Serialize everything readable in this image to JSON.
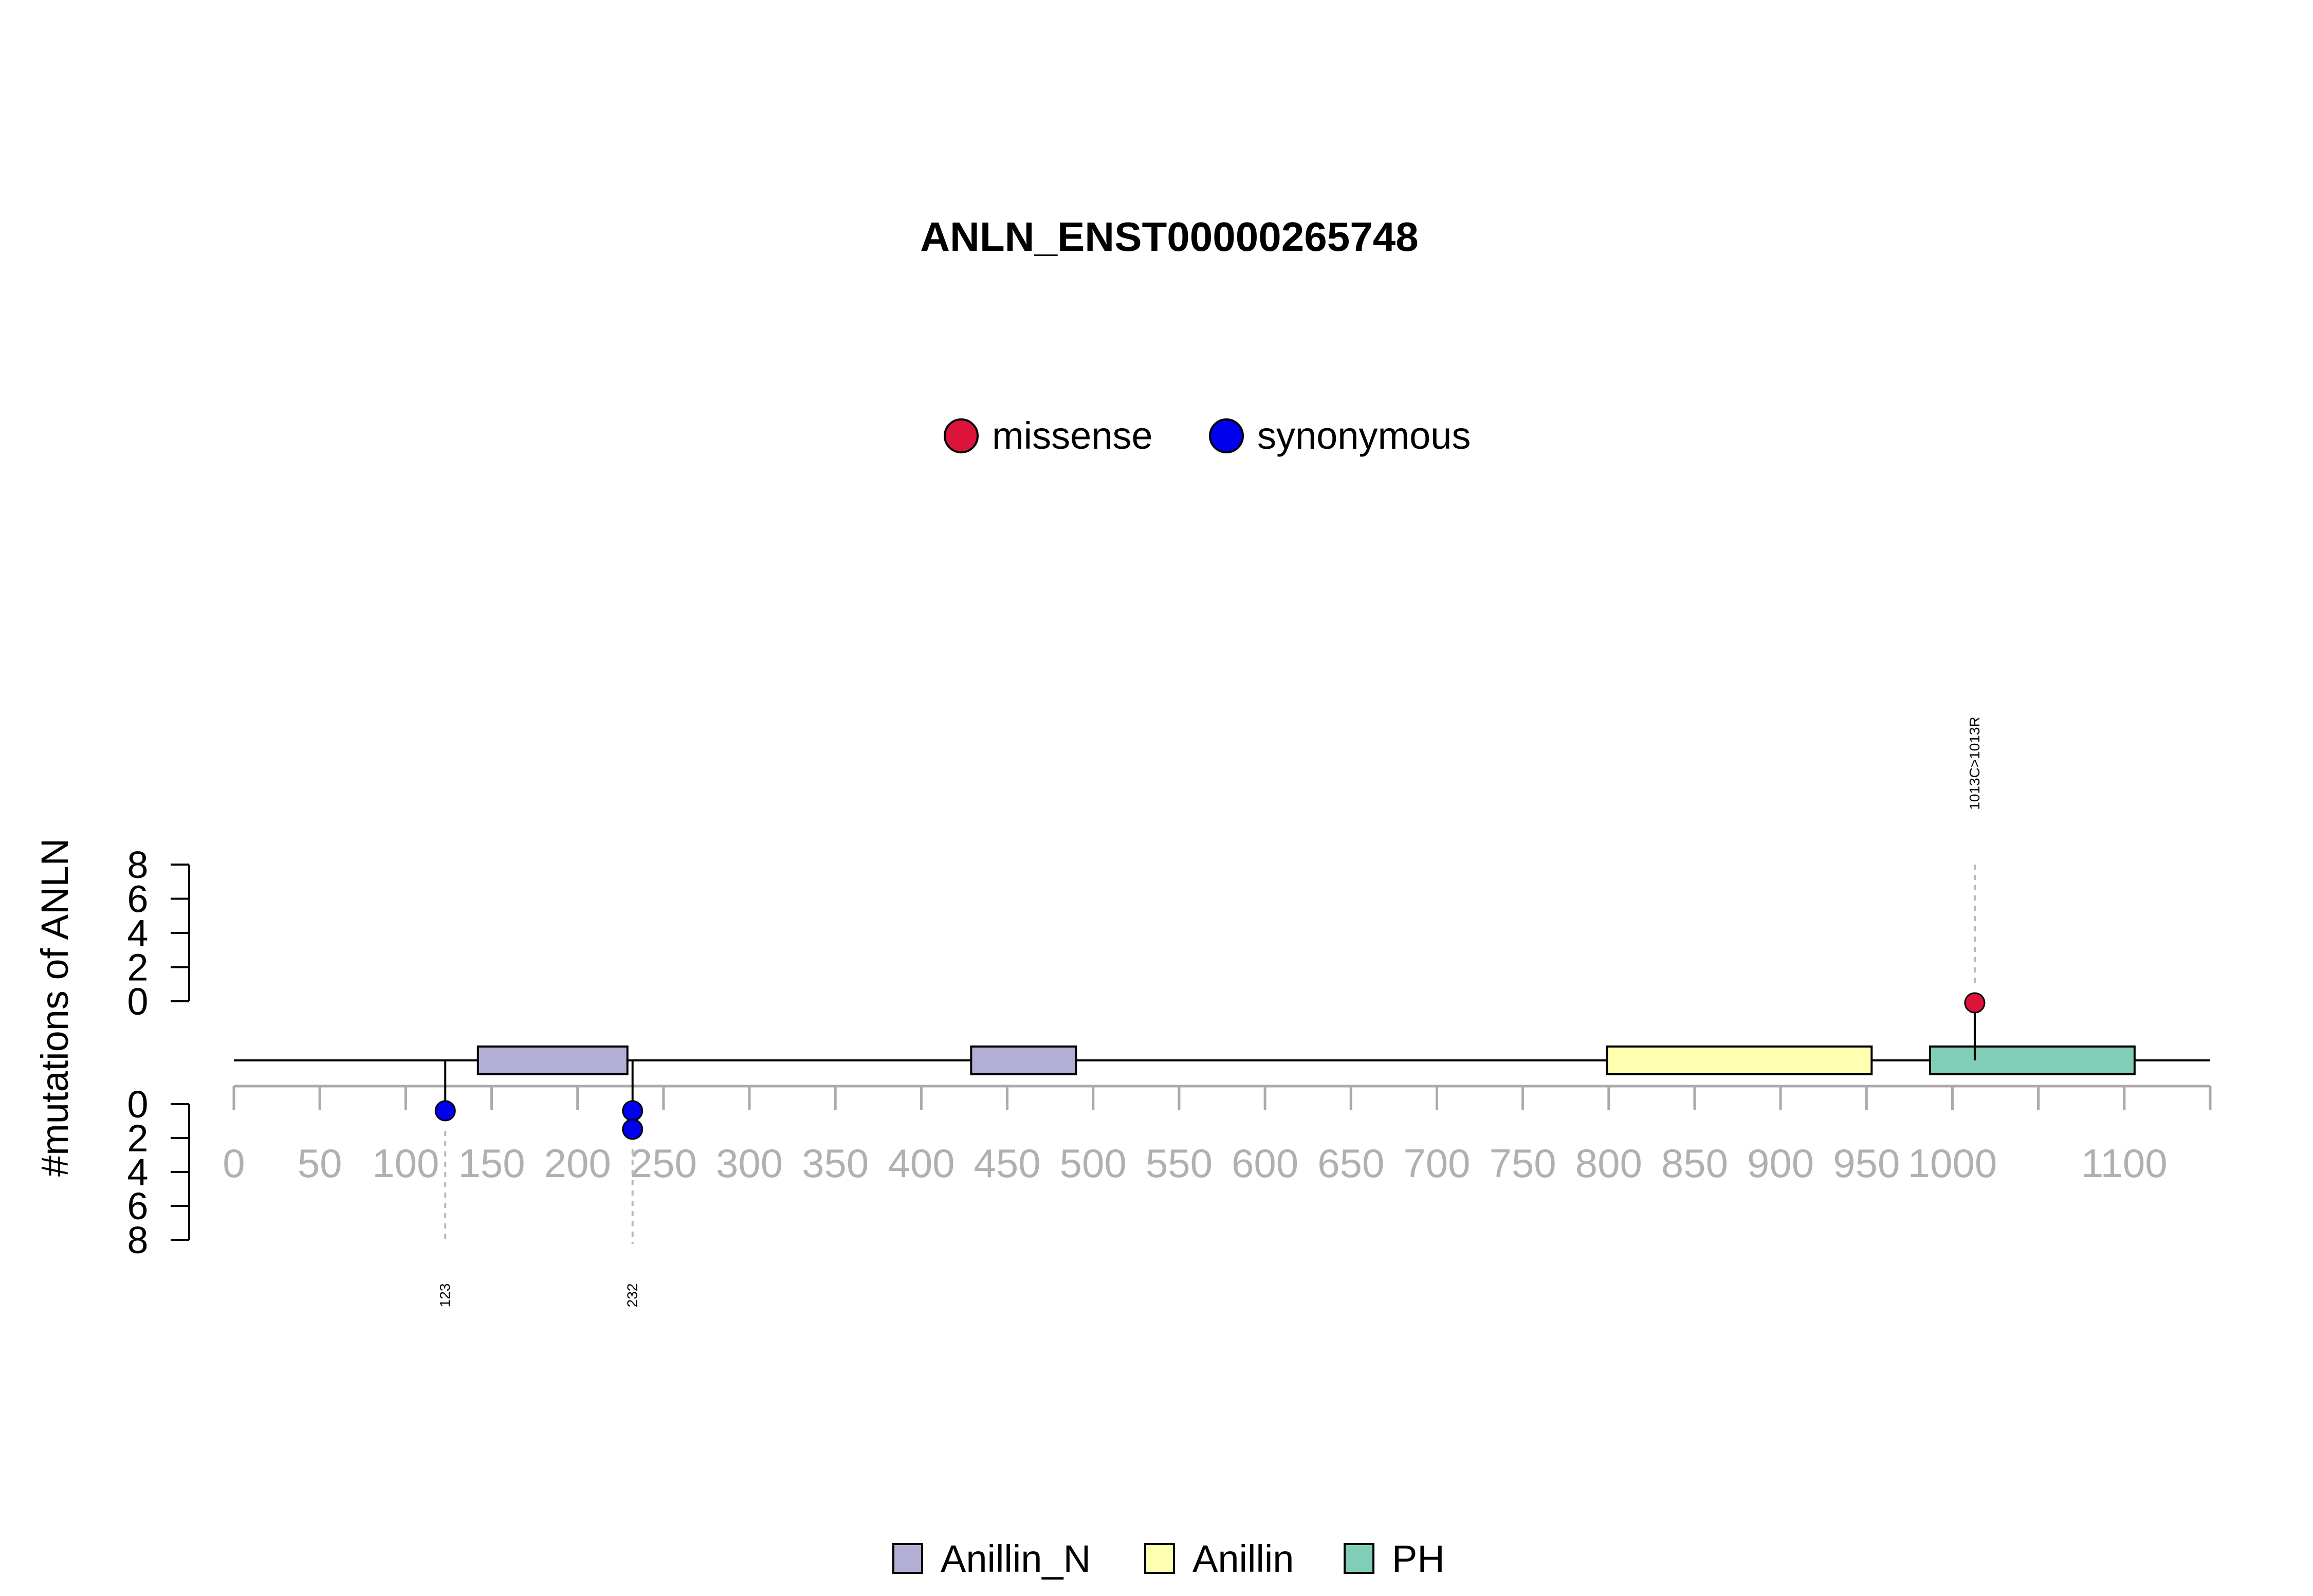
{
  "chart_data": {
    "type": "lollipop",
    "title": "ANLN_ENST00000265748",
    "ylabel": "#mutations of ANLN",
    "xlim": [
      0,
      1150
    ],
    "x_ticks": [
      0,
      50,
      100,
      150,
      200,
      250,
      300,
      350,
      400,
      450,
      500,
      550,
      600,
      650,
      700,
      750,
      800,
      850,
      900,
      950,
      1000,
      1100
    ],
    "x_minor_ticks": [
      0,
      50,
      100,
      150,
      200,
      250,
      300,
      350,
      400,
      450,
      500,
      550,
      600,
      650,
      700,
      750,
      800,
      850,
      900,
      950,
      1000,
      1050,
      1100,
      1150
    ],
    "y_upper": {
      "range": [
        0,
        8
      ],
      "ticks": [
        0,
        2,
        4,
        6,
        8
      ]
    },
    "y_lower": {
      "range": [
        0,
        8
      ],
      "ticks": [
        0,
        2,
        4,
        6,
        8
      ]
    },
    "mutation_legend": [
      {
        "label": "missense",
        "color": "#dc143c"
      },
      {
        "label": "synonymous",
        "color": "#0000ee"
      }
    ],
    "domain_legend": [
      {
        "label": "Anillin_N",
        "color": "#b3aed3"
      },
      {
        "label": "Anillin",
        "color": "#ffffb0"
      },
      {
        "label": "PH",
        "color": "#80cdb8"
      }
    ],
    "domains": [
      {
        "name": "Anillin_N",
        "start": 142,
        "end": 229,
        "color": "#b3aed3"
      },
      {
        "name": "Anillin_N",
        "start": 429,
        "end": 490,
        "color": "#b3aed3"
      },
      {
        "name": "Anillin",
        "start": 799,
        "end": 953,
        "color": "#ffffb0"
      },
      {
        "name": "PH",
        "start": 987,
        "end": 1106,
        "color": "#80cdb8"
      }
    ],
    "mutations": [
      {
        "position": 1013,
        "count": 1,
        "type": "missense",
        "side": "top",
        "label": "1013C>1013R"
      },
      {
        "position": 123,
        "count": 1,
        "type": "synonymous",
        "side": "bottom",
        "label": "123"
      },
      {
        "position": 232,
        "count": 2,
        "type": "synonymous",
        "side": "bottom",
        "label": "232"
      }
    ]
  }
}
